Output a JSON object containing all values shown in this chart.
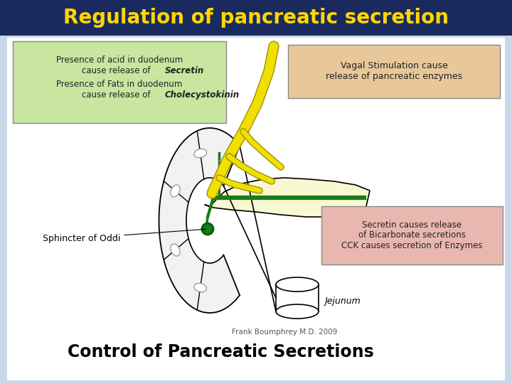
{
  "title": "Regulation of pancreatic secretion",
  "title_color": "#FFD700",
  "title_bg": "#1a2a5e",
  "bg_color": "#c8d8e8",
  "white_area_color": "#ffffff",
  "bottom_text": "Control of Pancreatic Secretions",
  "credit_text": "Frank Boumphrey M.D. 2009",
  "box1_color": "#c8e6a0",
  "box1_edge": "#888888",
  "box2_text": "Vagal Stimulation cause\nrelease of pancreatic enzymes",
  "box2_color": "#e8c89a",
  "box2_edge": "#888888",
  "box3_text": "Secretin causes release\nof Bicarbonate secretions\nCCK causes secretion of Enzymes",
  "box3_color": "#e8b8b0",
  "box3_edge": "#888888",
  "label_sphincter": "Sphincter of Oddi",
  "label_jejunum": "Jejunum",
  "pancreas_color": "#f8f8d0",
  "duct_color": "#1a7a1a",
  "nerve_color": "#f0e000",
  "nerve_edge": "#c8b800"
}
